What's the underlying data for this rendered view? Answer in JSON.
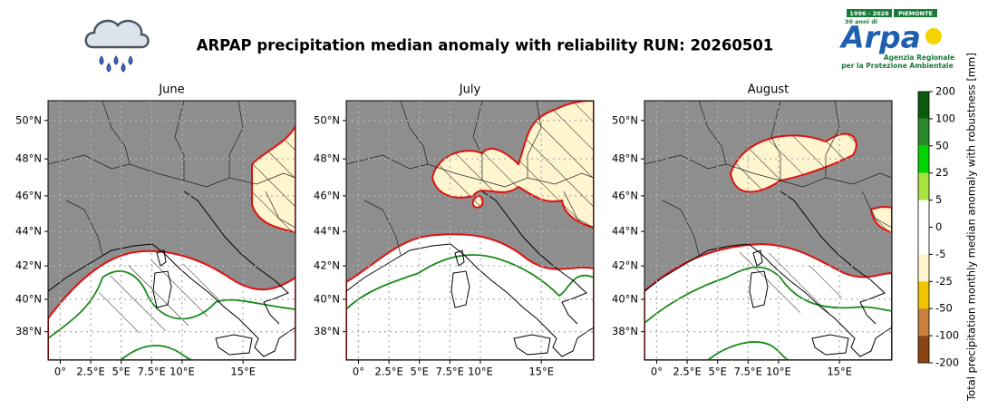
{
  "title": "ARPAP precipitation median anomaly with reliability RUN: 20260501",
  "logo": {
    "badge": "1996 - 2026",
    "region": "PIEMONTE",
    "anniversary": "30 anni di",
    "name": "Arpa",
    "agency": [
      "Agenzia Regionale",
      "per la Protezione Ambientale"
    ]
  },
  "panels": [
    {
      "title": "June"
    },
    {
      "title": "July"
    },
    {
      "title": "August"
    }
  ],
  "map": {
    "xlim": [
      -1,
      19.3
    ],
    "ylim": [
      36.2,
      51.0
    ],
    "lat_ticks": [
      {
        "value": 50,
        "label": "50°N"
      },
      {
        "value": 48,
        "label": "48°N"
      },
      {
        "value": 46,
        "label": "46°N"
      },
      {
        "value": 44,
        "label": "44°N"
      },
      {
        "value": 42,
        "label": "42°N"
      },
      {
        "value": 40,
        "label": "40°N"
      },
      {
        "value": 38,
        "label": "38°N"
      }
    ],
    "lon_ticks": [
      {
        "value": 0,
        "label": "0°"
      },
      {
        "value": 2.5,
        "label": "2.5°E"
      },
      {
        "value": 5,
        "label": "5°E"
      },
      {
        "value": 7.5,
        "label": "7.5°E"
      },
      {
        "value": 10,
        "label": "10°E"
      },
      {
        "value": 15,
        "label": "15°E"
      }
    ],
    "grid": true
  },
  "colorbar": {
    "label": "Total precipitation monthly median anomaly with robustness [mm]",
    "ticks": [
      200,
      100,
      50,
      25,
      5,
      0,
      -5,
      -25,
      -50,
      -100,
      -200
    ],
    "colors": [
      "#0a5c0a",
      "#2a8a2a",
      "#00d400",
      "#a6e33c",
      "#ffffff",
      "#ffffff",
      "#fff6cf",
      "#f2c500",
      "#c8803c",
      "#8b4513"
    ]
  }
}
